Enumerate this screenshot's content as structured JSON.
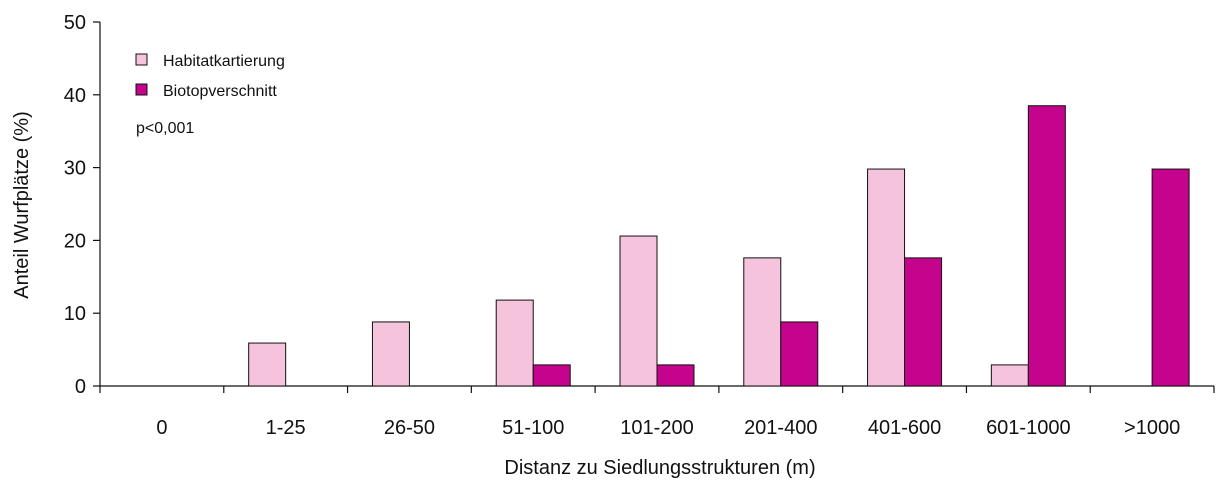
{
  "chart_data": {
    "type": "bar",
    "categories": [
      "0",
      "1-25",
      "26-50",
      "51-100",
      "101-200",
      "201-400",
      "401-600",
      "601-1000",
      ">1000"
    ],
    "series": [
      {
        "name": "Habitatkartierung",
        "values": [
          0,
          5.9,
          8.8,
          11.8,
          20.6,
          17.6,
          29.8,
          2.9,
          0
        ]
      },
      {
        "name": "Biotopverschnitt",
        "values": [
          0,
          0,
          0,
          2.9,
          2.9,
          8.8,
          17.6,
          38.5,
          29.8
        ]
      }
    ],
    "title": "",
    "xlabel": "Distanz zu Siedlungsstrukturen (m)",
    "ylabel": "Anteil Wurfplätze (%)",
    "ylim": [
      0,
      50
    ],
    "yticks": [
      "0",
      "10",
      "20",
      "30",
      "40",
      "50"
    ],
    "annotation": "p<0,001",
    "grid": false,
    "legend_position": "top-left"
  },
  "colors": {
    "Habitatkartierung": "#f5c3dc",
    "Biotopverschnitt": "#c4048c",
    "axis": "#111111",
    "bar_stroke": "#111111"
  }
}
